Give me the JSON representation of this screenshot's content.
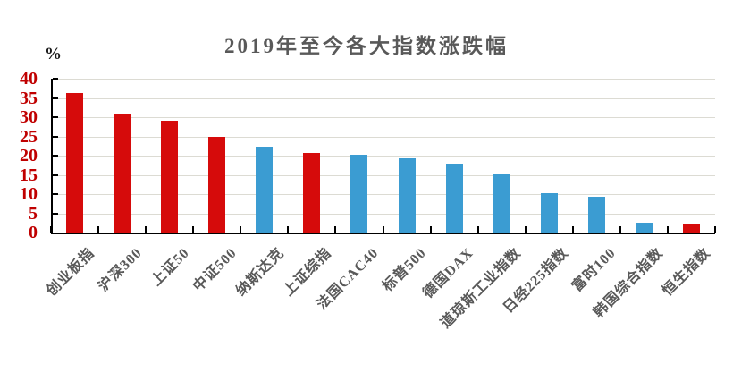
{
  "title": "2019年至今各大指数涨跌幅",
  "palette": {
    "red_bar": "#d60b0b",
    "blue_bar": "#3b9cd2",
    "y_tick_label": "#c00000",
    "title_text": "#595959",
    "x_tick_label": "#595959",
    "gridline": "#dcdbd3",
    "axis": "#000000"
  },
  "chart_data": {
    "type": "bar",
    "title": "2019年至今各大指数涨跌幅",
    "ylabel": "%",
    "xlabel": "",
    "ylim": [
      0,
      40
    ],
    "yticks": [
      0,
      5,
      10,
      15,
      20,
      25,
      30,
      35,
      40
    ],
    "grid": true,
    "legend_position": "none",
    "categories": [
      "创业板指",
      "沪深300",
      "上证50",
      "中证500",
      "纳斯达克",
      "上证综指",
      "法国CAC40",
      "标普500",
      "德国DAX",
      "道琼斯工业指数",
      "日经225指数",
      "富时100",
      "韩国综合指数",
      "恒生指数"
    ],
    "values": [
      36.2,
      30.8,
      29.1,
      24.8,
      22.3,
      20.6,
      20.2,
      19.2,
      18.0,
      15.4,
      10.3,
      9.2,
      2.5,
      2.3
    ],
    "bar_colors": [
      "red_bar",
      "red_bar",
      "red_bar",
      "red_bar",
      "blue_bar",
      "red_bar",
      "blue_bar",
      "blue_bar",
      "blue_bar",
      "blue_bar",
      "blue_bar",
      "blue_bar",
      "blue_bar",
      "red_bar"
    ]
  }
}
